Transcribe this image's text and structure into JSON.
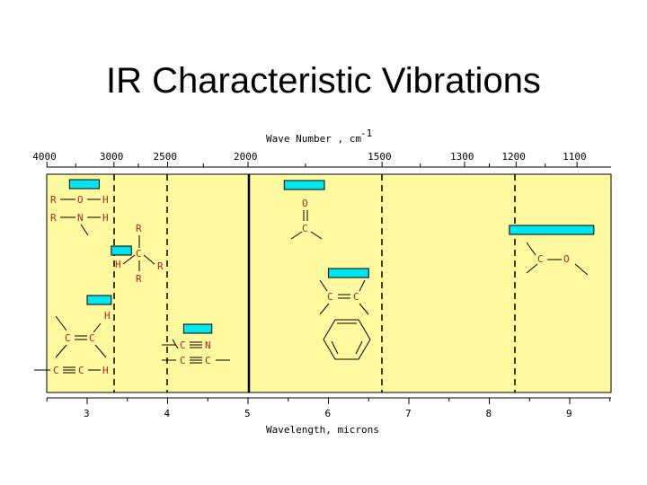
{
  "title": "IR Characteristic Vibrations",
  "chart": {
    "top_axis_title": "Wave Number , cm",
    "top_axis_sup": "-1",
    "bottom_axis_title": "Wavelength, microns",
    "wavenumber_ticks": [
      "4000",
      "3000",
      "2500",
      "2000",
      "1500",
      "1300",
      "1200",
      "1100"
    ],
    "wavelength_ticks": [
      "3",
      "4",
      "5",
      "6",
      "7",
      "8",
      "9"
    ]
  },
  "chart_data": {
    "type": "bar",
    "title": "",
    "xlabel": "Wavelength, microns",
    "x2label": "Wave Number , cm-1",
    "x_range_microns": [
      2.5,
      9.5
    ],
    "bands": [
      {
        "group": "O-H / N-H stretch",
        "microns": [
          2.78,
          3.15
        ]
      },
      {
        "group": "C-H stretch",
        "microns": [
          3.3,
          3.55
        ]
      },
      {
        "group": "=C-H / C=C",
        "microns": [
          3.0,
          3.3
        ]
      },
      {
        "group": "C≡N / C≡C",
        "microns": [
          4.2,
          4.55
        ]
      },
      {
        "group": "C=O",
        "microns": [
          5.45,
          5.95
        ]
      },
      {
        "group": "C=C aromatic",
        "microns": [
          6.0,
          6.5
        ]
      },
      {
        "group": "C-O",
        "microns": [
          8.25,
          9.3
        ]
      }
    ]
  },
  "labels": {
    "R": "R",
    "O": "O",
    "H": "H",
    "N": "N",
    "C": "C"
  },
  "colors": {
    "plot_bg": "#fff9a0",
    "band": "#00e5ee",
    "atom_text": "#b22222"
  }
}
